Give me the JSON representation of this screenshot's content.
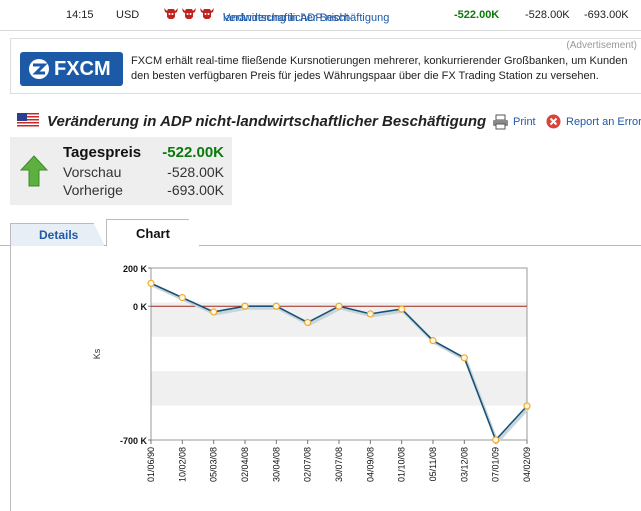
{
  "top_row": {
    "time": "14:15",
    "currency": "USD",
    "title_line1": "Veränderung in ADP nicht-",
    "title_line2": "landwirtschaftlicher Beschäftigung",
    "actual": "-522.00K",
    "forecast": "-528.00K",
    "previous": "-693.00K"
  },
  "ad": {
    "tag": "(Advertisement)",
    "logo_text": "FXCM",
    "text": "FXCM erhält real-time fließende Kursnotierungen mehrerer, konkurrierender Großbanken, um Kunden den besten verfügbaren Preis für jedes Währungspaar über die FX Trading Station zu versehen."
  },
  "header": {
    "title": "Veränderung in ADP nicht-landwirtschaftlicher Beschäftigung",
    "print_label": "Print",
    "report_label": "Report an Error"
  },
  "price": {
    "main_label": "Tagespreis",
    "main_value": "-522.00K",
    "forecast_label": "Vorschau",
    "forecast_value": "-528.00K",
    "previous_label": "Vorherige",
    "previous_value": "-693.00K"
  },
  "tabs": [
    {
      "label": "Details"
    },
    {
      "label": "Chart"
    }
  ],
  "colors": {
    "positive": "#0a7a0a",
    "link": "#1f5aa6",
    "line": "#1a5276",
    "marker": "#f2a92a",
    "zero_line": "#a0281e"
  },
  "chart_data": {
    "type": "line",
    "ylabel": "Ks",
    "ylim": [
      -700,
      200
    ],
    "y_ticks": [
      "200 K",
      "0 K",
      "-700 K"
    ],
    "x": [
      "01/06/90",
      "10/02/08",
      "05/03/08",
      "02/04/08",
      "30/04/08",
      "02/07/08",
      "30/07/08",
      "04/09/08",
      "01/10/08",
      "05/11/08",
      "03/12/08",
      "07/01/09",
      "04/02/09"
    ],
    "values": [
      120,
      45,
      -30,
      0,
      0,
      -85,
      0,
      -40,
      -15,
      -180,
      -270,
      -700,
      -522
    ]
  }
}
